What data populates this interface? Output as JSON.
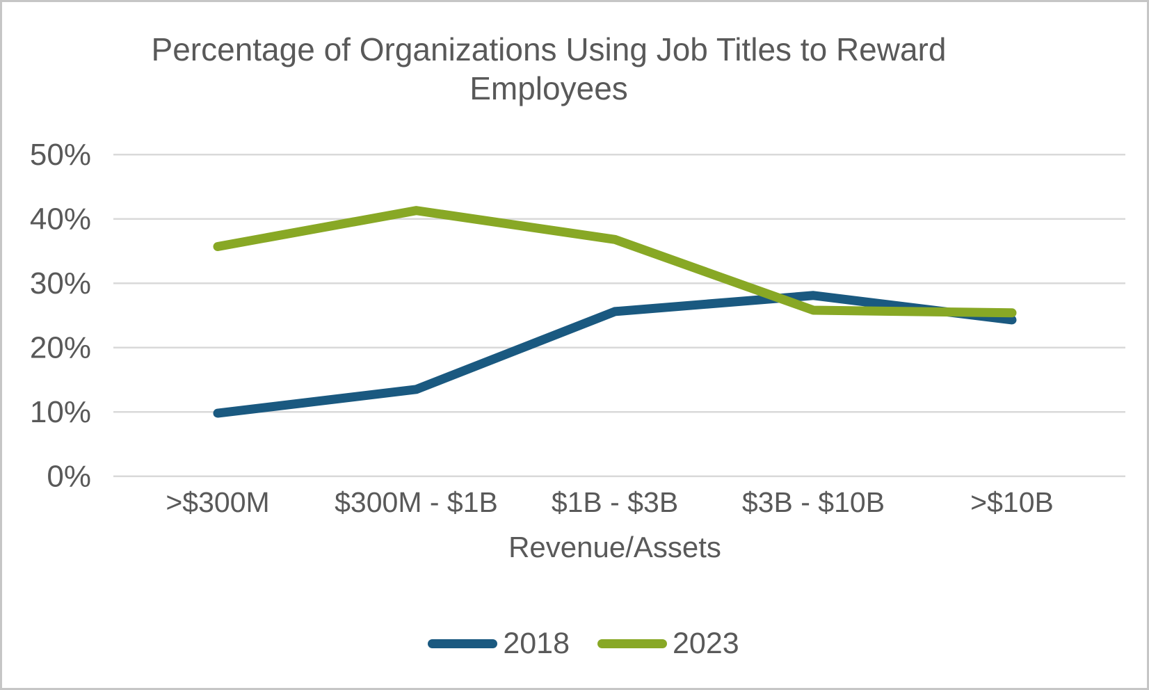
{
  "colors": {
    "text": "#595959",
    "gridline": "#d9d9d9",
    "frame": "#c6c6c6",
    "background": "#ffffff",
    "series_2018": "#1a5980",
    "series_2023": "#88a825"
  },
  "chart_data": {
    "type": "line",
    "title": "Percentage of Organizations Using Job Titles to Reward Employees",
    "xlabel": "Revenue/Assets",
    "categories": [
      ">$300M",
      "$300M - $1B",
      "$1B - $3B",
      "$3B - $10B",
      ">$10B"
    ],
    "series": [
      {
        "name": "2018",
        "color": "#1a5980",
        "values": [
          9.8,
          13.5,
          25.6,
          28.1,
          24.3
        ]
      },
      {
        "name": "2023",
        "color": "#88a825",
        "values": [
          35.7,
          41.3,
          36.8,
          25.8,
          25.4
        ]
      }
    ],
    "ylim": [
      0,
      50
    ],
    "yticks": [
      {
        "label": "0%",
        "value": 0
      },
      {
        "label": "10%",
        "value": 10
      },
      {
        "label": "20%",
        "value": 20
      },
      {
        "label": "30%",
        "value": 30
      },
      {
        "label": "40%",
        "value": 40
      },
      {
        "label": "50%",
        "value": 50
      }
    ],
    "grid": "horizontal",
    "legend_position": "bottom"
  }
}
